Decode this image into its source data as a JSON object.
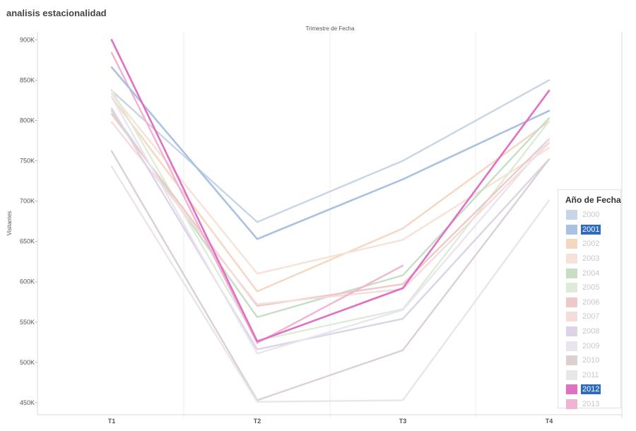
{
  "page": {
    "title": "analisis estacionalidad"
  },
  "chart_data": {
    "type": "line",
    "title": "analisis estacionalidad",
    "xlabel": "Trimestre de Fecha",
    "ylabel": "Visitantes",
    "categories": [
      "T1",
      "T2",
      "T3",
      "T4"
    ],
    "ylim": [
      435000,
      910000
    ],
    "yticks": [
      450000,
      500000,
      550000,
      600000,
      650000,
      700000,
      750000,
      800000,
      850000,
      900000
    ],
    "ytick_labels": [
      "450K",
      "500K",
      "550K",
      "600K",
      "650K",
      "700K",
      "750K",
      "800K",
      "850K",
      "900K"
    ],
    "legend_title": "Año de Fecha",
    "legend_position": "right",
    "series": [
      {
        "name": "2000",
        "color": "#c6d6e6",
        "selected": false,
        "values": [
          837000,
          674000,
          750000,
          850000
        ]
      },
      {
        "name": "2001",
        "color": "#a9c1e2",
        "selected": true,
        "values": [
          866000,
          653000,
          727000,
          812000
        ]
      },
      {
        "name": "2002",
        "color": "#f5d7c0",
        "selected": false,
        "values": [
          829000,
          588000,
          666000,
          799000
        ]
      },
      {
        "name": "2003",
        "color": "#f6e2d6",
        "selected": false,
        "values": [
          833000,
          610000,
          652000,
          766000
        ]
      },
      {
        "name": "2004",
        "color": "#c6dfc4",
        "selected": false,
        "values": [
          812000,
          556000,
          608000,
          803000
        ]
      },
      {
        "name": "2005",
        "color": "#dcecd8",
        "selected": false,
        "values": [
          838000,
          527000,
          566000,
          799000
        ]
      },
      {
        "name": "2006",
        "color": "#efc8c8",
        "selected": false,
        "values": [
          808000,
          570000,
          597000,
          777000
        ]
      },
      {
        "name": "2007",
        "color": "#f5dcdc",
        "selected": false,
        "values": [
          798000,
          572000,
          591000,
          772000
        ]
      },
      {
        "name": "2008",
        "color": "#dcd3e6",
        "selected": false,
        "values": [
          815000,
          516000,
          554000,
          752000
        ]
      },
      {
        "name": "2009",
        "color": "#e9e4ef",
        "selected": false,
        "values": [
          829000,
          511000,
          565000,
          776000
        ]
      },
      {
        "name": "2010",
        "color": "#ddd0d0",
        "selected": false,
        "values": [
          762000,
          453000,
          515000,
          752000
        ]
      },
      {
        "name": "2011",
        "color": "#e8e6e6",
        "selected": false,
        "values": [
          743000,
          451000,
          453000,
          701000
        ]
      },
      {
        "name": "2012",
        "color": "#e071c2",
        "selected": true,
        "values": [
          900000,
          526000,
          592000,
          837000
        ]
      },
      {
        "name": "2013",
        "color": "#f0b4d2",
        "selected": false,
        "values": [
          884000,
          524000,
          620000,
          null
        ]
      }
    ]
  }
}
